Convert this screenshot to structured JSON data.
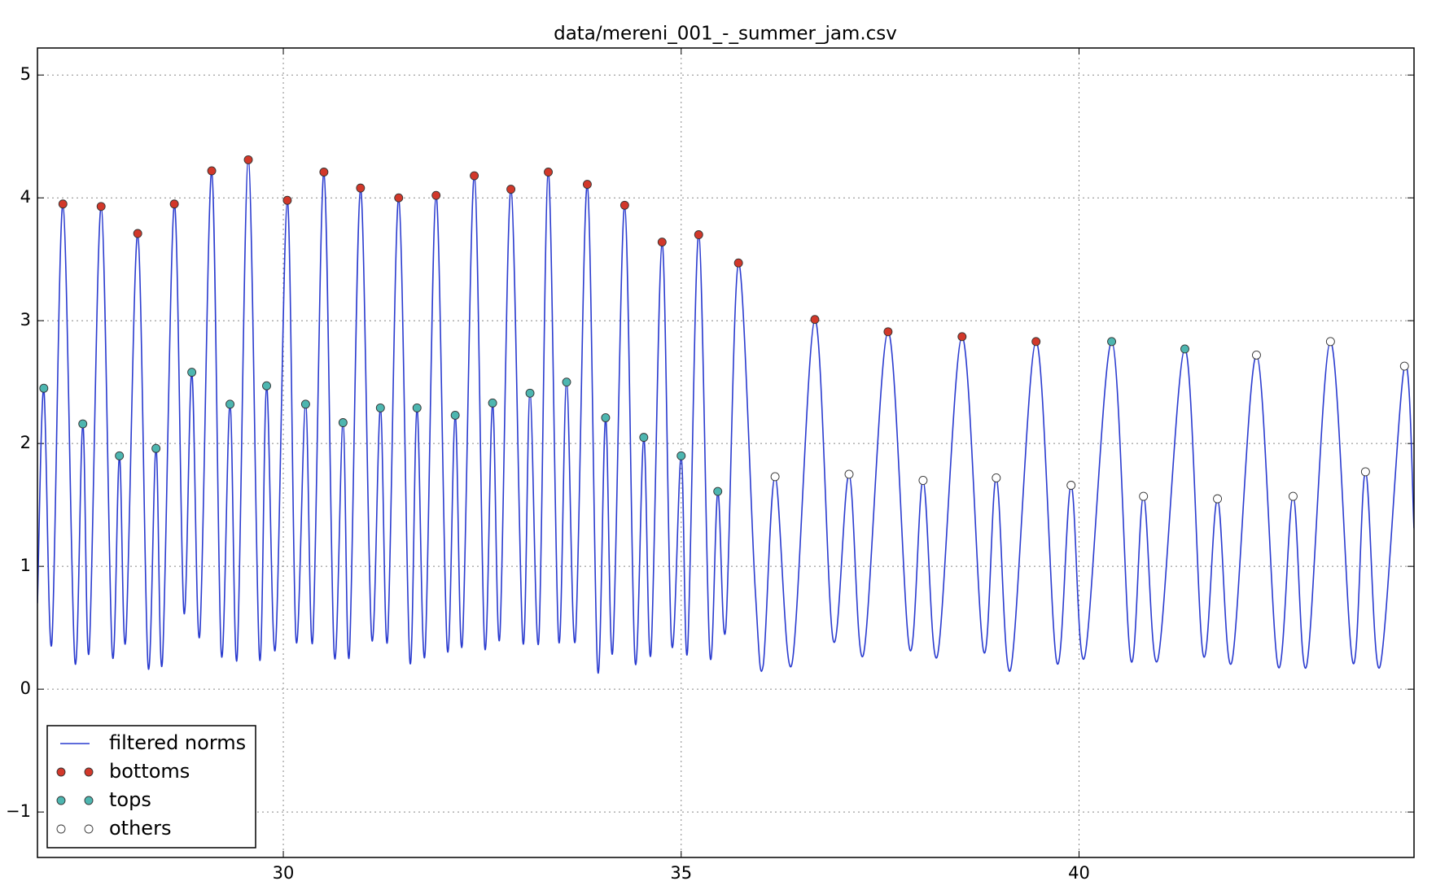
{
  "chart_data": {
    "type": "line",
    "title": "data/mereni_001_-_summer_jam.csv",
    "xlim": [
      26.91,
      44.21
    ],
    "ylim": [
      -1.37,
      5.22
    ],
    "xticks": [
      30,
      35,
      40
    ],
    "yticks": [
      {
        "value": -1,
        "label": "−1"
      },
      0,
      1,
      2,
      3,
      4,
      5
    ],
    "grid": true,
    "legend": "lower left",
    "series": [
      {
        "name": "filtered norms",
        "type": "line",
        "color": "#2a3bcf",
        "x": [
          26.91,
          26.99,
          27.09,
          27.23,
          27.38,
          27.48,
          27.56,
          27.71,
          27.85,
          27.94,
          28.02,
          28.17,
          28.3,
          28.4,
          28.48,
          28.63,
          28.75,
          28.85,
          28.95,
          29.1,
          29.22,
          29.33,
          29.42,
          29.56,
          29.7,
          29.79,
          29.9,
          30.05,
          30.16,
          30.28,
          30.37,
          30.51,
          30.64,
          30.75,
          30.83,
          30.97,
          31.11,
          31.22,
          31.31,
          31.45,
          31.59,
          31.68,
          31.78,
          31.92,
          32.06,
          32.16,
          32.25,
          32.4,
          32.53,
          32.63,
          32.72,
          32.86,
          33.01,
          33.1,
          33.21,
          33.33,
          33.46,
          33.56,
          33.67,
          33.82,
          33.95,
          34.05,
          34.14,
          34.29,
          34.42,
          34.53,
          34.62,
          34.76,
          34.88,
          35.0,
          35.08,
          35.22,
          35.36,
          35.46,
          35.56,
          35.72,
          35.93,
          36.03,
          36.18,
          36.39,
          36.68,
          36.91,
          37.11,
          37.29,
          37.6,
          37.87,
          38.04,
          38.22,
          38.53,
          38.8,
          38.96,
          39.14,
          39.46,
          39.72,
          39.9,
          40.07,
          40.41,
          40.65,
          40.81,
          40.99,
          41.33,
          41.56,
          41.74,
          41.92,
          42.23,
          42.5,
          42.69,
          42.86,
          43.16,
          43.44,
          43.6,
          43.78,
          44.09,
          44.21
        ],
        "values": [
          0.7,
          2.45,
          0.37,
          3.95,
          0.23,
          2.16,
          0.31,
          3.93,
          0.29,
          1.9,
          0.4,
          3.71,
          0.19,
          1.96,
          0.22,
          3.95,
          0.63,
          2.58,
          0.44,
          4.22,
          0.29,
          2.32,
          0.26,
          4.31,
          0.26,
          2.47,
          0.33,
          3.98,
          0.4,
          2.32,
          0.4,
          4.21,
          0.28,
          2.17,
          0.28,
          4.08,
          0.42,
          2.29,
          0.4,
          4.0,
          0.23,
          2.29,
          0.28,
          4.02,
          0.33,
          2.23,
          0.37,
          4.18,
          0.35,
          2.33,
          0.42,
          4.07,
          0.39,
          2.41,
          0.39,
          4.21,
          0.4,
          2.5,
          0.4,
          4.11,
          0.16,
          2.21,
          0.31,
          3.94,
          0.23,
          2.05,
          0.29,
          3.64,
          0.37,
          1.9,
          0.31,
          3.7,
          0.29,
          1.61,
          0.49,
          3.47,
          0.82,
          0.19,
          1.73,
          0.2,
          3.01,
          0.4,
          1.75,
          0.28,
          2.91,
          0.33,
          1.7,
          0.27,
          2.87,
          0.31,
          1.72,
          0.16,
          2.83,
          0.22,
          1.66,
          0.26,
          2.83,
          0.24,
          1.57,
          0.24,
          2.77,
          0.28,
          1.55,
          0.22,
          2.72,
          0.19,
          1.57,
          0.19,
          2.83,
          0.22,
          1.77,
          0.18,
          2.63,
          1.31
        ]
      },
      {
        "name": "bottoms",
        "type": "scatter",
        "color": "#d2382a",
        "x": [
          27.23,
          27.71,
          28.17,
          28.63,
          29.1,
          29.56,
          30.05,
          30.51,
          30.97,
          31.45,
          31.92,
          32.4,
          32.86,
          33.33,
          33.82,
          34.29,
          34.76,
          35.22,
          35.72,
          36.68,
          37.6,
          38.53,
          39.46
        ],
        "values": [
          3.95,
          3.93,
          3.71,
          3.95,
          4.22,
          4.31,
          3.98,
          4.21,
          4.08,
          4.0,
          4.02,
          4.18,
          4.07,
          4.21,
          4.11,
          3.94,
          3.64,
          3.7,
          3.47,
          3.01,
          2.91,
          2.87,
          2.83
        ]
      },
      {
        "name": "tops",
        "type": "scatter",
        "color": "#4db6b0",
        "x": [
          26.99,
          27.48,
          27.94,
          28.4,
          28.85,
          29.33,
          29.79,
          30.28,
          30.75,
          31.22,
          31.68,
          32.16,
          32.63,
          33.1,
          33.56,
          34.05,
          34.53,
          35.0,
          35.46,
          40.41,
          41.33
        ],
        "values": [
          2.45,
          2.16,
          1.9,
          1.96,
          2.58,
          2.32,
          2.47,
          2.32,
          2.17,
          2.29,
          2.29,
          2.23,
          2.33,
          2.41,
          2.5,
          2.21,
          2.05,
          1.9,
          1.61,
          2.83,
          2.77
        ]
      },
      {
        "name": "others",
        "type": "scatter",
        "color": "#ffffff",
        "x": [
          36.18,
          37.11,
          38.04,
          38.96,
          39.9,
          40.81,
          41.74,
          42.23,
          42.69,
          43.16,
          43.6,
          44.09
        ],
        "values": [
          1.73,
          1.75,
          1.7,
          1.72,
          1.66,
          1.57,
          1.55,
          2.72,
          1.57,
          2.83,
          1.77,
          2.63
        ]
      }
    ]
  }
}
